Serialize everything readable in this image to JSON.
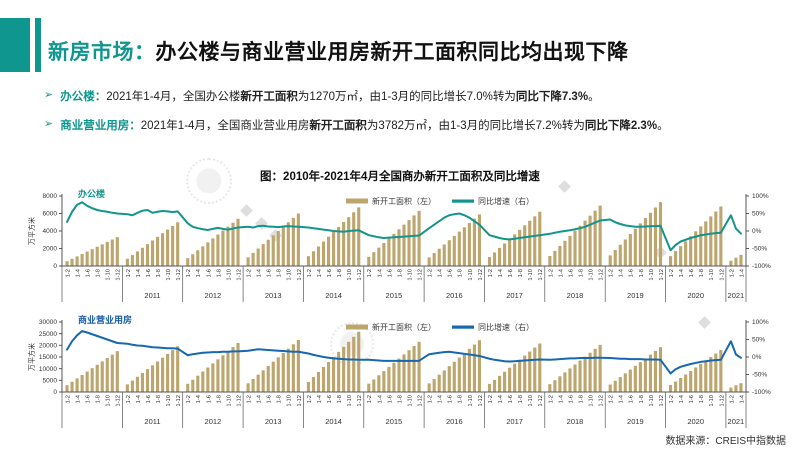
{
  "slide": {
    "title_prefix": "新房市场：",
    "title_main": "办公楼与商业营业用房新开工面积同比均出现下降",
    "source": "数据来源：CREIS中指数据"
  },
  "icons": {
    "bullet_arrow": "➢"
  },
  "colors": {
    "accent_teal": "#0f968f",
    "title_black": "#111111",
    "bar_gold": "#bda56e",
    "line_teal": "#14948c",
    "line_blue": "#1668b0",
    "axis_gray": "#555555",
    "text_dark": "#333333"
  },
  "bullets": [
    {
      "segments": [
        {
          "t": "办公楼：",
          "b": true,
          "c": "accent_teal"
        },
        {
          "t": "2021年1-4月，全国办公楼",
          "b": false
        },
        {
          "t": "新开工面积",
          "b": true
        },
        {
          "t": "为1270万㎡，由1-3月的同比增长7.0%转为",
          "b": false
        },
        {
          "t": "同比下降7.3%",
          "b": true
        },
        {
          "t": "。",
          "b": false
        }
      ]
    },
    {
      "segments": [
        {
          "t": "商业营业用房：",
          "b": true,
          "c": "accent_teal"
        },
        {
          "t": "2021年1-4月，全国商业营业用房",
          "b": false
        },
        {
          "t": "新开工面积",
          "b": true
        },
        {
          "t": "为3782万㎡，由1-3月的同比增长7.2%转为",
          "b": false
        },
        {
          "t": "同比下降2.3%",
          "b": true
        },
        {
          "t": "。",
          "b": false
        }
      ]
    }
  ],
  "figure": {
    "title": "图：2010年-2021年4月全国商办新开工面积及同比增速"
  },
  "chart_data": [
    {
      "type": "bar+line",
      "title_label": "办公楼",
      "label_color": "#14948c",
      "bar_color": "#bda56e",
      "line_color": "#14948c",
      "series": [
        {
          "name": "新开工面积（左）",
          "type": "bar"
        },
        {
          "name": "同比增速（右）",
          "type": "line"
        }
      ],
      "axis_left": {
        "unit": "万平方米",
        "max": 8000,
        "ticks": [
          0,
          2000,
          4000,
          6000,
          8000
        ]
      },
      "axis_right": {
        "ticks": [
          100,
          50,
          0,
          -50,
          -100
        ],
        "suffix": "%"
      },
      "month_ticks": [
        "1-2",
        "1-4",
        "1-6",
        "1-8",
        "1-10",
        "1-12"
      ],
      "groups": [
        {
          "year": "",
          "bars": [
            550,
            825,
            1100,
            1375,
            1650,
            1925,
            2200,
            2475,
            2750,
            3025,
            3300
          ],
          "line": [
            26,
            55,
            75,
            82,
            72,
            65,
            60,
            57,
            55,
            52,
            50
          ]
        },
        {
          "year": "2011",
          "bars": [
            830,
            1250,
            1670,
            2080,
            2500,
            2920,
            3330,
            3750,
            4170,
            4580,
            5000
          ],
          "line": [
            48,
            45,
            52,
            58,
            60,
            52,
            55,
            57,
            56,
            54,
            56
          ]
        },
        {
          "year": "2012",
          "bars": [
            900,
            1350,
            1800,
            2250,
            2700,
            3150,
            3600,
            4050,
            4500,
            4950,
            5400
          ],
          "line": [
            22,
            12,
            8,
            5,
            3,
            6,
            9,
            6,
            4,
            7,
            10
          ]
        },
        {
          "year": "2013",
          "bars": [
            1000,
            1500,
            2000,
            2500,
            3000,
            3500,
            4000,
            4500,
            5000,
            5500,
            6000
          ],
          "line": [
            12,
            10,
            14,
            15,
            13,
            12,
            11,
            13,
            14,
            13,
            12
          ]
        },
        {
          "year": "2014",
          "bars": [
            1120,
            1680,
            2230,
            2790,
            3350,
            3910,
            4470,
            5030,
            5580,
            6140,
            6700
          ],
          "line": [
            10,
            8,
            6,
            4,
            2,
            0,
            -1,
            -2,
            0,
            1,
            2
          ]
        },
        {
          "year": "2015",
          "bars": [
            1050,
            1580,
            2100,
            2630,
            3150,
            3680,
            4200,
            4730,
            5250,
            5780,
            6300
          ],
          "line": [
            -12,
            -15,
            -18,
            -20,
            -19,
            -18,
            -17,
            -16,
            -15,
            -14,
            -13
          ]
        },
        {
          "year": "2016",
          "bars": [
            980,
            1480,
            1970,
            2460,
            2950,
            3440,
            3930,
            4430,
            4920,
            5410,
            5900
          ],
          "line": [
            8,
            18,
            28,
            38,
            45,
            48,
            50,
            45,
            38,
            28,
            18
          ]
        },
        {
          "year": "2017",
          "bars": [
            1030,
            1550,
            2070,
            2580,
            3100,
            3620,
            4130,
            4650,
            5170,
            5680,
            6200
          ],
          "line": [
            -12,
            -16,
            -20,
            -23,
            -24,
            -22,
            -20,
            -18,
            -16,
            -14,
            -12
          ]
        },
        {
          "year": "2018",
          "bars": [
            1150,
            1730,
            2300,
            2880,
            3450,
            4030,
            4600,
            5180,
            5750,
            6330,
            6900
          ],
          "line": [
            -8,
            -5,
            -2,
            0,
            2,
            5,
            8,
            12,
            18,
            24,
            30
          ]
        },
        {
          "year": "2019",
          "bars": [
            1220,
            1830,
            2430,
            3040,
            3650,
            4260,
            4870,
            5480,
            6080,
            6690,
            7300
          ],
          "line": [
            33,
            25,
            20,
            16,
            14,
            12,
            12,
            13,
            14,
            14,
            15
          ]
        },
        {
          "year": "2020",
          "bars": [
            1130,
            1700,
            2270,
            2830,
            3400,
            3970,
            4530,
            5100,
            5670,
            6230,
            6800
          ],
          "line": [
            -55,
            -40,
            -30,
            -25,
            -20,
            -16,
            -12,
            -10,
            -8,
            -6,
            -5
          ]
        },
        {
          "year": "2021",
          "bars": [
            600,
            950,
            1270
          ],
          "line": [
            45,
            7,
            -7.3
          ]
        }
      ]
    },
    {
      "type": "bar+line",
      "title_label": "商业营业用房",
      "label_color": "#1a5fa8",
      "bar_color": "#bda56e",
      "line_color": "#1668b0",
      "series": [
        {
          "name": "新开工面积（左）",
          "type": "bar"
        },
        {
          "name": "同比增速（右）",
          "type": "line"
        }
      ],
      "axis_left": {
        "unit": "万平方米",
        "max": 30000,
        "ticks": [
          0,
          5000,
          10000,
          15000,
          20000,
          25000,
          30000
        ]
      },
      "axis_right": {
        "ticks": [
          100,
          50,
          0,
          -50,
          -100
        ],
        "suffix": "%"
      },
      "month_ticks": [
        "1-2",
        "1-4",
        "1-6",
        "1-8",
        "1-10",
        "1-12"
      ],
      "groups": [
        {
          "year": "",
          "bars": [
            2920,
            4380,
            5830,
            7290,
            8750,
            10210,
            11670,
            13130,
            14580,
            16040,
            17500
          ],
          "line": [
            21,
            45,
            62,
            74,
            70,
            65,
            60,
            55,
            50,
            45,
            40
          ]
        },
        {
          "year": "2011",
          "bars": [
            3270,
            4900,
            6530,
            8170,
            9800,
            11430,
            13070,
            14700,
            16330,
            17970,
            19600
          ],
          "line": [
            38,
            35,
            33,
            32,
            30,
            28,
            27,
            26,
            25,
            25,
            24
          ]
        },
        {
          "year": "2012",
          "bars": [
            3500,
            5250,
            7000,
            8750,
            10500,
            12250,
            14000,
            15750,
            17500,
            19250,
            21000
          ],
          "line": [
            5,
            8,
            10,
            12,
            13,
            14,
            14,
            15,
            15,
            16,
            16
          ]
        },
        {
          "year": "2013",
          "bars": [
            3720,
            5580,
            7430,
            9290,
            11150,
            13010,
            14870,
            16730,
            18580,
            20440,
            22300
          ],
          "line": [
            18,
            20,
            22,
            21,
            20,
            19,
            18,
            17,
            16,
            15,
            15
          ]
        },
        {
          "year": "2014",
          "bars": [
            4300,
            6450,
            8600,
            10750,
            12900,
            15050,
            17200,
            19350,
            21500,
            23650,
            25800
          ],
          "line": [
            10,
            6,
            3,
            0,
            -2,
            -4,
            -5,
            -6,
            -7,
            -7,
            -8
          ]
        },
        {
          "year": "2015",
          "bars": [
            3580,
            5380,
            7170,
            8960,
            10750,
            12540,
            14330,
            16130,
            17920,
            19710,
            21500
          ],
          "line": [
            -8,
            -9,
            -10,
            -11,
            -11,
            -11,
            -11,
            -11,
            -11,
            -11,
            -11
          ]
        },
        {
          "year": "2016",
          "bars": [
            3700,
            5550,
            7400,
            9250,
            11100,
            12950,
            14800,
            16650,
            18500,
            20350,
            22200
          ],
          "line": [
            8,
            10,
            12,
            14,
            15,
            13,
            11,
            9,
            7,
            5,
            3
          ]
        },
        {
          "year": "2017",
          "bars": [
            3470,
            5200,
            6930,
            8670,
            10400,
            12130,
            13870,
            15600,
            17330,
            19070,
            20800
          ],
          "line": [
            -5,
            -8,
            -10,
            -12,
            -13,
            -12,
            -11,
            -10,
            -9,
            -8,
            -7
          ]
        },
        {
          "year": "2018",
          "bars": [
            3370,
            5050,
            6730,
            8420,
            10100,
            11780,
            13470,
            15150,
            16830,
            18520,
            20200
          ],
          "line": [
            -8,
            -7,
            -6,
            -5,
            -4,
            -4,
            -3,
            -3,
            -3,
            -2,
            -2
          ]
        },
        {
          "year": "2019",
          "bars": [
            3200,
            4800,
            6400,
            8000,
            9600,
            11200,
            12800,
            14400,
            16000,
            17600,
            19200
          ],
          "line": [
            -3,
            -4,
            -5,
            -5,
            -6,
            -6,
            -6,
            -7,
            -7,
            -7,
            -8
          ]
        },
        {
          "year": "2020",
          "bars": [
            3000,
            4500,
            6000,
            7500,
            9000,
            10500,
            12000,
            13500,
            15000,
            16500,
            18000
          ],
          "line": [
            -47,
            -35,
            -28,
            -24,
            -20,
            -17,
            -14,
            -12,
            -10,
            -9,
            -8
          ]
        },
        {
          "year": "2021",
          "bars": [
            1900,
            2900,
            3782
          ],
          "line": [
            45,
            7.2,
            -2.3
          ]
        }
      ]
    }
  ]
}
